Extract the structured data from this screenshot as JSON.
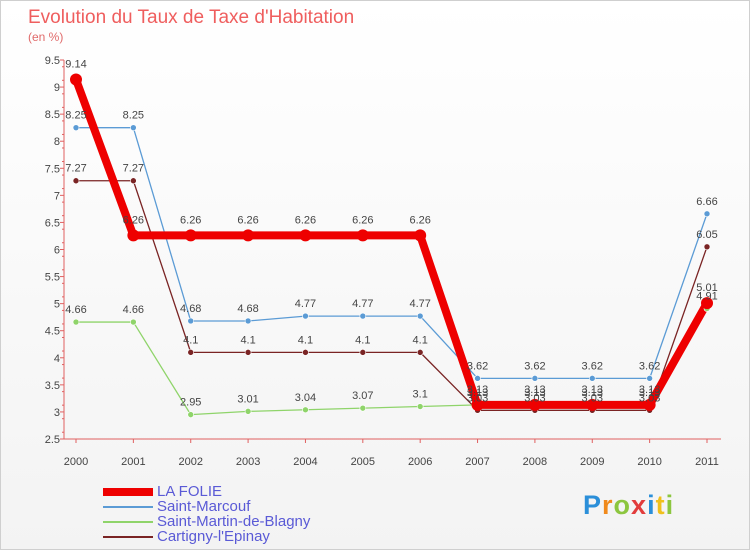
{
  "chart_data": {
    "type": "line",
    "title": "Evolution du Taux de Taxe d'Habitation",
    "subtitle": "(en %)",
    "x": [
      "2000",
      "2001",
      "2002",
      "2003",
      "2004",
      "2005",
      "2006",
      "2007",
      "2008",
      "2009",
      "2010",
      "2011"
    ],
    "ylim": [
      2.5,
      9.5
    ],
    "yticks": [
      "2.5",
      "3",
      "3.5",
      "4",
      "4.5",
      "5",
      "5.5",
      "6",
      "6.5",
      "7",
      "7.5",
      "8",
      "8.5",
      "9",
      "9.5"
    ],
    "series": [
      {
        "name": "Saint-Marcouf",
        "color": "#5b9bd5",
        "values": [
          8.25,
          8.25,
          4.68,
          4.68,
          4.77,
          4.77,
          4.77,
          3.62,
          3.62,
          3.62,
          3.62,
          6.66
        ],
        "labels": [
          "8.25",
          "8.25",
          "4.68",
          "4.68",
          "4.77",
          "4.77",
          "4.77",
          "3.62",
          "3.62",
          "3.62",
          "3.62",
          "6.66"
        ]
      },
      {
        "name": "Cartigny-l'Epinay",
        "color": "#7a2424",
        "values": [
          7.27,
          7.27,
          4.1,
          4.1,
          4.1,
          4.1,
          4.1,
          3.03,
          3.03,
          3.03,
          3.03,
          6.05
        ],
        "labels": [
          "7.27",
          "7.27",
          "4.1",
          "4.1",
          "4.1",
          "4.1",
          "4.1",
          "3.03",
          "3.03",
          "3.03",
          "3.03",
          "6.05"
        ]
      },
      {
        "name": "Saint-Martin-de-Blagny",
        "color": "#8fd46a",
        "values": [
          4.66,
          4.66,
          2.95,
          3.01,
          3.04,
          3.07,
          3.1,
          3.13,
          3.13,
          3.13,
          3.13,
          4.91
        ],
        "labels": [
          "4.66",
          "4.66",
          "2.95",
          "3.01",
          "3.04",
          "3.07",
          "3.1",
          "3.13",
          "3.13",
          "3.13",
          "3.13",
          "4.91"
        ]
      },
      {
        "name": "LA FOLIE",
        "color": "#ee0000",
        "values": [
          9.14,
          6.26,
          6.26,
          6.26,
          6.26,
          6.26,
          6.26,
          3.13,
          3.13,
          3.13,
          3.13,
          5.01
        ],
        "labels": [
          "9.14",
          "6.26",
          "6.26",
          "6.26",
          "6.26",
          "6.26",
          "6.26",
          "3.13",
          "3.13",
          "3.13",
          "3.13",
          "5.01"
        ]
      }
    ]
  },
  "legend": [
    {
      "label": "LA FOLIE",
      "color": "#ee0000"
    },
    {
      "label": "Saint-Marcouf",
      "color": "#5b9bd5"
    },
    {
      "label": "Saint-Martin-de-Blagny",
      "color": "#8fd46a"
    },
    {
      "label": "Cartigny-l'Epinay",
      "color": "#7a2424"
    }
  ],
  "brand": [
    "P",
    "r",
    "o",
    "x",
    "i",
    "t",
    "i"
  ]
}
